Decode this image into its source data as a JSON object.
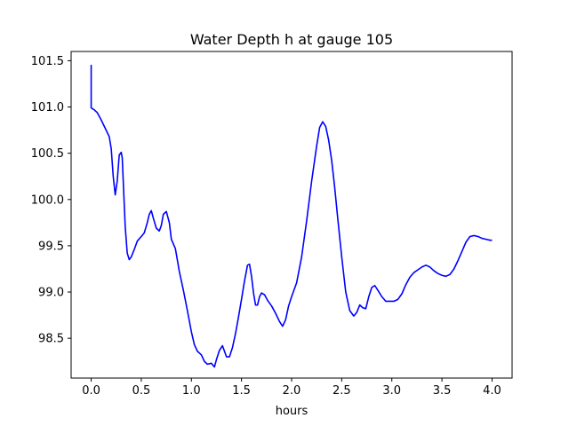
{
  "chart_data": {
    "type": "line",
    "title": "Water Depth h at gauge 105",
    "xlabel": "hours",
    "ylabel": "",
    "xlim": [
      -0.2,
      4.2
    ],
    "ylim": [
      98.07,
      101.6
    ],
    "xticks": [
      0.0,
      0.5,
      1.0,
      1.5,
      2.0,
      2.5,
      3.0,
      3.5,
      4.0
    ],
    "xtick_labels": [
      "0.0",
      "0.5",
      "1.0",
      "1.5",
      "2.0",
      "2.5",
      "3.0",
      "3.5",
      "4.0"
    ],
    "yticks": [
      98.5,
      99.0,
      99.5,
      100.0,
      100.5,
      101.0,
      101.5
    ],
    "ytick_labels": [
      "98.5",
      "99.0",
      "99.5",
      "100.0",
      "100.5",
      "101.0",
      "101.5"
    ],
    "grid": false,
    "line_color": "#0000ff",
    "series": [
      {
        "x": [
          0.0,
          0.0,
          0.0,
          0.03,
          0.06,
          0.1,
          0.14,
          0.18,
          0.2,
          0.22,
          0.24,
          0.26,
          0.28,
          0.3,
          0.31,
          0.32,
          0.34,
          0.36,
          0.38,
          0.4,
          0.43,
          0.46,
          0.5,
          0.53,
          0.56,
          0.58,
          0.6,
          0.62,
          0.65,
          0.68,
          0.7,
          0.72,
          0.75,
          0.78,
          0.8,
          0.84,
          0.88,
          0.92,
          0.96,
          1.0,
          1.03,
          1.06,
          1.1,
          1.13,
          1.16,
          1.2,
          1.23,
          1.25,
          1.28,
          1.31,
          1.33,
          1.35,
          1.38,
          1.41,
          1.44,
          1.47,
          1.5,
          1.53,
          1.56,
          1.58,
          1.6,
          1.62,
          1.64,
          1.66,
          1.68,
          1.7,
          1.73,
          1.76,
          1.8,
          1.84,
          1.88,
          1.91,
          1.94,
          1.97,
          2.0,
          2.05,
          2.1,
          2.15,
          2.2,
          2.25,
          2.28,
          2.31,
          2.34,
          2.37,
          2.4,
          2.43,
          2.46,
          2.5,
          2.54,
          2.58,
          2.62,
          2.65,
          2.68,
          2.71,
          2.74,
          2.77,
          2.8,
          2.83,
          2.86,
          2.9,
          2.94,
          2.98,
          3.02,
          3.06,
          3.1,
          3.14,
          3.18,
          3.22,
          3.26,
          3.3,
          3.34,
          3.38,
          3.42,
          3.46,
          3.5,
          3.54,
          3.58,
          3.62,
          3.66,
          3.7,
          3.74,
          3.78,
          3.82,
          3.86,
          3.9,
          3.94,
          3.98,
          4.0
        ],
        "y": [
          101.0,
          101.45,
          100.99,
          100.97,
          100.94,
          100.86,
          100.77,
          100.68,
          100.55,
          100.25,
          100.05,
          100.2,
          100.48,
          100.51,
          100.45,
          100.2,
          99.7,
          99.42,
          99.35,
          99.38,
          99.46,
          99.55,
          99.6,
          99.64,
          99.75,
          99.84,
          99.88,
          99.8,
          99.69,
          99.66,
          99.72,
          99.84,
          99.87,
          99.75,
          99.57,
          99.47,
          99.22,
          99.02,
          98.8,
          98.57,
          98.43,
          98.36,
          98.32,
          98.25,
          98.22,
          98.23,
          98.19,
          98.27,
          98.37,
          98.42,
          98.36,
          98.3,
          98.3,
          98.4,
          98.55,
          98.73,
          98.92,
          99.12,
          99.29,
          99.3,
          99.17,
          98.99,
          98.86,
          98.86,
          98.95,
          98.99,
          98.97,
          98.91,
          98.85,
          98.77,
          98.68,
          98.63,
          98.7,
          98.85,
          98.95,
          99.1,
          99.38,
          99.77,
          100.2,
          100.58,
          100.78,
          100.84,
          100.79,
          100.64,
          100.42,
          100.13,
          99.8,
          99.38,
          99.0,
          98.8,
          98.74,
          98.78,
          98.86,
          98.83,
          98.82,
          98.95,
          99.05,
          99.07,
          99.02,
          98.95,
          98.9,
          98.9,
          98.9,
          98.92,
          98.98,
          99.08,
          99.16,
          99.21,
          99.24,
          99.27,
          99.29,
          99.27,
          99.23,
          99.2,
          99.18,
          99.17,
          99.19,
          99.25,
          99.34,
          99.44,
          99.54,
          99.6,
          99.61,
          99.6,
          99.58,
          99.57,
          99.56,
          99.56
        ]
      }
    ]
  }
}
